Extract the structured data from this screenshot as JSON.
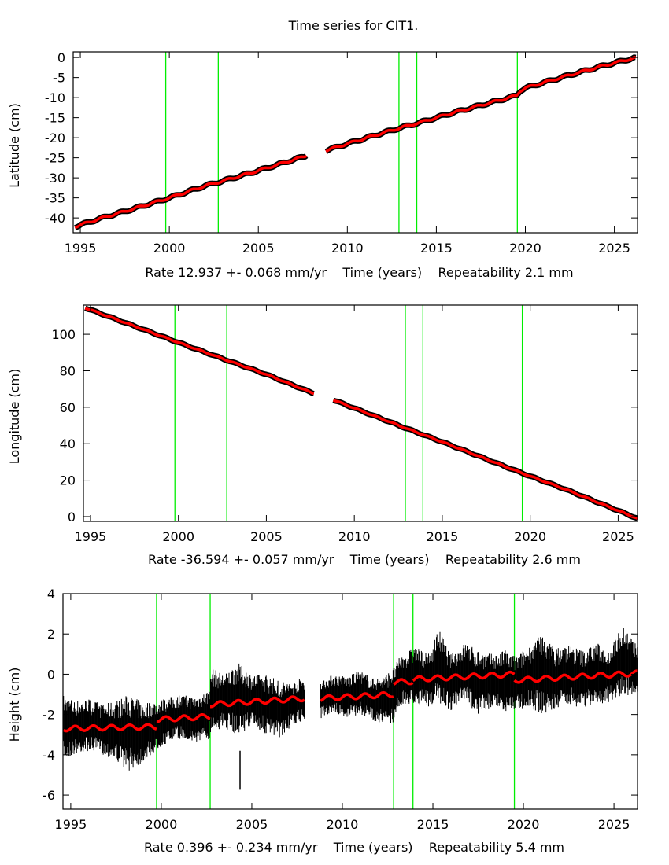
{
  "chart_data": {
    "type": "line",
    "title": "Time series for CIT1.",
    "colors": {
      "data": "#000000",
      "model": "#ff0000",
      "event_line": "#00ee00"
    },
    "panels": [
      {
        "id": "latitude",
        "ylabel": "Latitude (cm)",
        "xlabel": "Rate 12.937 +- 0.068 mm/yr    Time (years)    Repeatability 2.1 mm",
        "xlim": [
          1994.6,
          2026.3
        ],
        "ylim": [
          -43.7,
          1.4
        ],
        "xticks": [
          "1995",
          "2000",
          "2005",
          "2010",
          "2015",
          "2020",
          "2025"
        ],
        "yticks": [
          "0",
          "-5",
          "-10",
          "-15",
          "-20",
          "-25",
          "-30",
          "-35",
          "-40"
        ],
        "event_lines": [
          1999.8,
          2002.75,
          2012.9,
          2013.9,
          2019.55
        ],
        "band": 0.6,
        "segments": [
          [
            [
              1994.7,
              -42.2
            ],
            [
              1996,
              -40.3
            ],
            [
              1998,
              -37.7
            ],
            [
              2000,
              -35.0
            ],
            [
              2002,
              -32.0
            ],
            [
              2003,
              -30.8
            ],
            [
              2005,
              -28.2
            ],
            [
              2007.7,
              -24.5
            ]
          ],
          [
            [
              2008.8,
              -23.2
            ],
            [
              2010,
              -21.5
            ],
            [
              2012,
              -18.8
            ],
            [
              2013,
              -17.5
            ],
            [
              2014,
              -16.3
            ],
            [
              2016,
              -13.7
            ],
            [
              2018,
              -11.3
            ],
            [
              2019.5,
              -9.5
            ],
            [
              2019.7,
              -8.3
            ],
            [
              2020,
              -7.6
            ],
            [
              2022,
              -5.0
            ],
            [
              2024,
              -2.5
            ],
            [
              2026.2,
              0.0
            ]
          ]
        ]
      },
      {
        "id": "longitude",
        "ylabel": "Longitude (cm)",
        "xlabel": "Rate -36.594 +- 0.057 mm/yr    Time (years)    Repeatability 2.6 mm",
        "xlim": [
          1994.6,
          2026.1
        ],
        "ylim": [
          -2.6,
          116
        ],
        "xticks": [
          "1995",
          "2000",
          "2005",
          "2010",
          "2015",
          "2020",
          "2025"
        ],
        "yticks": [
          "100",
          "80",
          "60",
          "40",
          "20",
          "0"
        ],
        "event_lines": [
          1999.8,
          2002.75,
          2012.9,
          2013.9,
          2019.55
        ],
        "band": 0.8,
        "segments": [
          [
            [
              1994.7,
              114.5
            ],
            [
              2000,
              95.5
            ],
            [
              2002.7,
              86.0
            ],
            [
              2005,
              78.0
            ],
            [
              2007.7,
              67.5
            ]
          ],
          [
            [
              2008.8,
              64.0
            ],
            [
              2010,
              59.5
            ],
            [
              2012.8,
              49.0
            ],
            [
              2015,
              41.0
            ],
            [
              2019.5,
              24.0
            ],
            [
              2022,
              15.0
            ],
            [
              2026.1,
              -1.0
            ]
          ]
        ]
      },
      {
        "id": "height",
        "ylabel": "Height (cm)",
        "xlabel": "Rate 0.396 +- 0.234 mm/yr    Time (years)    Repeatability 5.4 mm",
        "xlim": [
          1994.57,
          2026.3
        ],
        "ylim": [
          -6.7,
          4
        ],
        "xticks": [
          "1995",
          "2000",
          "2005",
          "2010",
          "2015",
          "2020",
          "2025"
        ],
        "yticks": [
          "4",
          "2",
          "0",
          "-2",
          "-4",
          "-6"
        ],
        "event_lines": [
          1999.74,
          2002.7,
          2012.83,
          2013.9,
          2019.5
        ],
        "seasonal_amplitude": 0.12,
        "model_segments": [
          [
            [
              1994.6,
              -2.7
            ],
            [
              1999.74,
              -2.6
            ]
          ],
          [
            [
              1999.74,
              -2.25
            ],
            [
              2002.7,
              -2.1
            ]
          ],
          [
            [
              2002.7,
              -1.5
            ],
            [
              2007.9,
              -1.2
            ]
          ],
          [
            [
              2008.8,
              -1.2
            ],
            [
              2012.83,
              -1.0
            ]
          ],
          [
            [
              2012.83,
              -0.4
            ],
            [
              2013.9,
              -0.35
            ]
          ],
          [
            [
              2013.9,
              -0.25
            ],
            [
              2019.5,
              0.0
            ]
          ],
          [
            [
              2019.5,
              -0.3
            ],
            [
              2026.3,
              0.05
            ]
          ]
        ],
        "envelope_segments": [
          [
            [
              1994.6,
              -4.3,
              -1.0
            ],
            [
              1995.2,
              -4.0,
              -1.3
            ],
            [
              1996,
              -3.8,
              -1.2
            ],
            [
              1996.8,
              -4.0,
              -1.5
            ],
            [
              1997.5,
              -4.3,
              -1.3
            ],
            [
              1998.2,
              -4.8,
              -1.0
            ],
            [
              1999,
              -4.4,
              -1.4
            ],
            [
              1999.7,
              -3.8,
              -1.3
            ],
            [
              2000.2,
              -3.5,
              -1.2
            ],
            [
              2001,
              -3.2,
              -1.0
            ],
            [
              2001.8,
              -3.4,
              -1.1
            ],
            [
              2002.6,
              -3.3,
              -0.8
            ],
            [
              2002.8,
              -2.8,
              0.3
            ],
            [
              2003.5,
              -2.7,
              0.0
            ],
            [
              2004.2,
              -3.0,
              0.6
            ],
            [
              2005,
              -2.6,
              0.0
            ],
            [
              2005.8,
              -3.0,
              0.0
            ],
            [
              2006.5,
              -3.2,
              -0.3
            ],
            [
              2007.2,
              -2.6,
              -0.4
            ],
            [
              2007.9,
              -2.3,
              -0.1
            ]
          ],
          [
            [
              2008.8,
              -2.2,
              -0.3
            ],
            [
              2009.5,
              -1.9,
              0.0
            ],
            [
              2010.3,
              -2.2,
              -0.1
            ],
            [
              2011,
              -2.0,
              0.2
            ],
            [
              2011.7,
              -2.3,
              -0.2
            ],
            [
              2012.4,
              -2.5,
              0.0
            ],
            [
              2012.8,
              -2.4,
              0.3
            ],
            [
              2013.2,
              -1.6,
              0.9
            ],
            [
              2014,
              -1.5,
              1.4
            ],
            [
              2014.8,
              -1.6,
              1.0
            ],
            [
              2015.3,
              -1.4,
              2.3
            ],
            [
              2016,
              -1.8,
              1.0
            ],
            [
              2016.8,
              -1.4,
              1.6
            ],
            [
              2017.5,
              -2.0,
              1.2
            ],
            [
              2018.3,
              -1.6,
              1.0
            ],
            [
              2019,
              -1.9,
              1.2
            ],
            [
              2019.6,
              -1.8,
              0.9
            ],
            [
              2020.3,
              -1.6,
              1.4
            ],
            [
              2021,
              -2.0,
              2.0
            ],
            [
              2021.8,
              -1.8,
              1.3
            ],
            [
              2022.5,
              -1.5,
              1.5
            ],
            [
              2023.3,
              -1.7,
              1.2
            ],
            [
              2024,
              -1.5,
              1.6
            ],
            [
              2024.7,
              -1.4,
              1.2
            ],
            [
              2025.5,
              -1.1,
              2.5
            ],
            [
              2026.3,
              -1.0,
              1.4
            ]
          ]
        ],
        "outliers": [
          [
            2004.35,
            -5.7,
            -3.8
          ]
        ]
      }
    ]
  }
}
